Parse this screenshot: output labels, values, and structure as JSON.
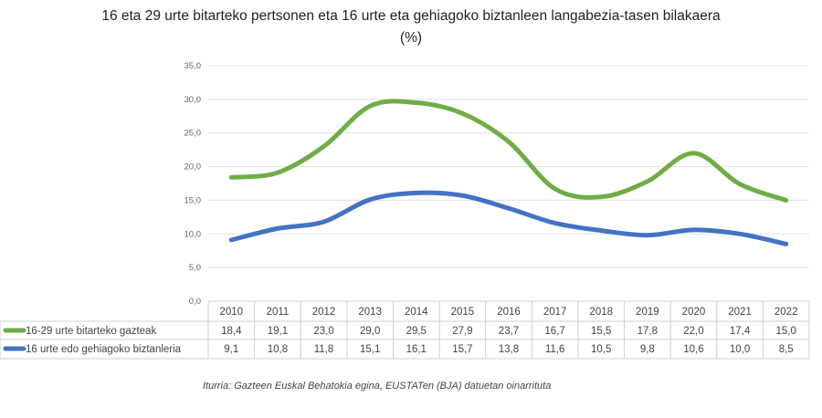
{
  "chart_data": {
    "type": "line",
    "title": "16 eta 29 urte bitarteko pertsonen eta 16 urte eta gehiagoko biztanleen langabezia-tasen bilakaera",
    "subtitle": "(%)",
    "categories": [
      "2010",
      "2011",
      "2012",
      "2013",
      "2014",
      "2015",
      "2016",
      "2017",
      "2018",
      "2019",
      "2020",
      "2021",
      "2022"
    ],
    "series": [
      {
        "name": "16-29 urte bitarteko gazteak",
        "color": "#70AD47",
        "values": [
          18.4,
          19.1,
          23.0,
          29.0,
          29.5,
          27.9,
          23.7,
          16.7,
          15.5,
          17.8,
          22.0,
          17.4,
          15.0
        ],
        "labels": [
          "18,4",
          "19,1",
          "23,0",
          "29,0",
          "29,5",
          "27,9",
          "23,7",
          "16,7",
          "15,5",
          "17,8",
          "22,0",
          "17,4",
          "15,0"
        ]
      },
      {
        "name": "16 urte edo gehiagoko biztanleria",
        "color": "#4472C4",
        "values": [
          9.1,
          10.8,
          11.8,
          15.1,
          16.1,
          15.7,
          13.8,
          11.6,
          10.5,
          9.8,
          10.6,
          10.0,
          8.5
        ],
        "labels": [
          "9,1",
          "10,8",
          "11,8",
          "15,1",
          "16,1",
          "15,7",
          "13,8",
          "11,6",
          "10,5",
          "9,8",
          "10,6",
          "10,0",
          "8,5"
        ]
      }
    ],
    "ylim": [
      0,
      35
    ],
    "yticks": [
      "0,0",
      "5,0",
      "10,0",
      "15,0",
      "20,0",
      "25,0",
      "30,0",
      "35,0"
    ],
    "grid": true,
    "smooth": true,
    "legend": "data-table",
    "source": "Iturria: Gazteen Euskal Behatokia egina, EUSTATen (BJA) datuetan oinarrituta"
  }
}
